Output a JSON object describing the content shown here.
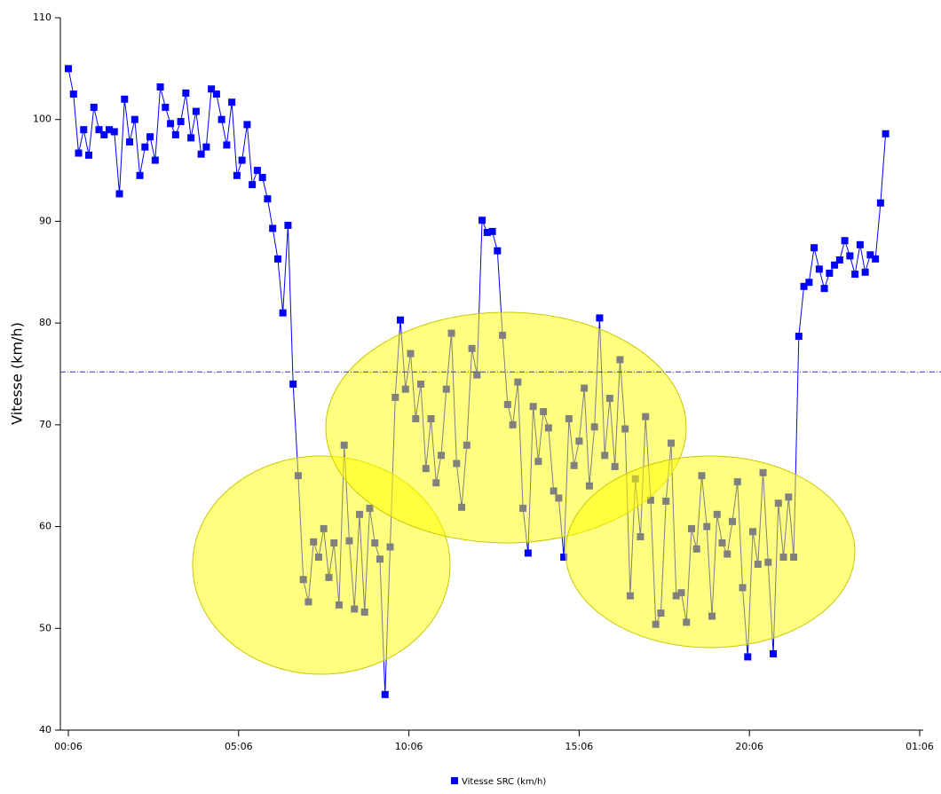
{
  "chart_data": {
    "type": "line",
    "y_label": "Vitesse (km/h)",
    "x": [
      0,
      0.15,
      0.3,
      0.45,
      0.6,
      0.75,
      0.9,
      1.05,
      1.2,
      1.35,
      1.5,
      1.65,
      1.8,
      1.95,
      2.1,
      2.25,
      2.4,
      2.55,
      2.7,
      2.85,
      3,
      3.15,
      3.3,
      3.45,
      3.6,
      3.75,
      3.9,
      4.05,
      4.2,
      4.35,
      4.5,
      4.65,
      4.8,
      4.95,
      5.1,
      5.25,
      5.4,
      5.55,
      5.7,
      5.85,
      6,
      6.15,
      6.3,
      6.45,
      6.6,
      6.75,
      6.9,
      7.05,
      7.2,
      7.35,
      7.5,
      7.65,
      7.8,
      7.95,
      8.1,
      8.25,
      8.4,
      8.55,
      8.7,
      8.85,
      9,
      9.15,
      9.3,
      9.45,
      9.6,
      9.75,
      9.9,
      10.05,
      10.2,
      10.35,
      10.5,
      10.65,
      10.8,
      10.95,
      11.1,
      11.25,
      11.4,
      11.55,
      11.7,
      11.85,
      12,
      12.15,
      12.3,
      12.45,
      12.6,
      12.75,
      12.9,
      13.05,
      13.2,
      13.35,
      13.5,
      13.65,
      13.8,
      13.95,
      14.1,
      14.25,
      14.4,
      14.55,
      14.7,
      14.85,
      15,
      15.15,
      15.3,
      15.45,
      15.6,
      15.75,
      15.9,
      16.05,
      16.2,
      16.35,
      16.5,
      16.65,
      16.8,
      16.95,
      17.1,
      17.25,
      17.4,
      17.55,
      17.7,
      17.85,
      18,
      18.15,
      18.3,
      18.45,
      18.6,
      18.75,
      18.9,
      19.05,
      19.2,
      19.35,
      19.5,
      19.65,
      19.8,
      19.95,
      20.1,
      20.25,
      20.4,
      20.55,
      20.7,
      20.85,
      21,
      21.15,
      21.3,
      21.45,
      21.6,
      21.75,
      21.9,
      22.05,
      22.2,
      22.35,
      22.5,
      22.65,
      22.8,
      22.95,
      23.1,
      23.25,
      23.4,
      23.55,
      23.7,
      23.85,
      24
    ],
    "series": [
      {
        "name": "Vitesse SRC (km/h)",
        "color": "#0000ff",
        "values": [
          105,
          102.5,
          96.7,
          99,
          96.5,
          101.2,
          99,
          98.5,
          99,
          98.8,
          92.7,
          102,
          97.8,
          100,
          94.5,
          97.3,
          98.3,
          96,
          103.2,
          101.2,
          99.6,
          98.5,
          99.8,
          102.6,
          98.2,
          100.8,
          96.6,
          97.3,
          103,
          102.5,
          100,
          97.5,
          101.7,
          94.5,
          96,
          99.5,
          93.6,
          95,
          94.3,
          92.2,
          89.3,
          86.3,
          81,
          89.6,
          74,
          65,
          54.8,
          52.6,
          58.5,
          57,
          59.8,
          55,
          58.4,
          52.3,
          68,
          58.6,
          51.9,
          61.2,
          51.6,
          61.8,
          58.4,
          56.8,
          43.5,
          58,
          72.7,
          80.3,
          73.5,
          77,
          70.6,
          74,
          65.7,
          70.6,
          64.3,
          67,
          73.5,
          79,
          66.2,
          61.9,
          68,
          77.5,
          74.9,
          90.1,
          88.9,
          89,
          87.1,
          78.8,
          72,
          70,
          74.2,
          61.8,
          57.4,
          71.8,
          66.4,
          71.3,
          69.7,
          63.5,
          62.8,
          57,
          70.6,
          66,
          68.4,
          73.6,
          64,
          69.8,
          80.5,
          67,
          72.6,
          65.9,
          76.4,
          69.6,
          53.2,
          64.7,
          59,
          70.8,
          62.6,
          50.4,
          51.5,
          62.5,
          68.2,
          53.2,
          53.5,
          50.6,
          59.8,
          57.8,
          65,
          60,
          51.2,
          61.2,
          58.4,
          57.3,
          60.5,
          64.4,
          54,
          47.2,
          59.5,
          56.3,
          65.3,
          56.5,
          47.5,
          62.3,
          57,
          62.9,
          57,
          78.7,
          83.6,
          84,
          87.4,
          85.3,
          83.4,
          84.9,
          85.7,
          86.2,
          88.1,
          86.6,
          84.8,
          87.7,
          85,
          86.7,
          86.3,
          91.8,
          98.6
        ]
      }
    ],
    "mean_line": 75.2,
    "xlim": [
      0,
      25
    ],
    "xticks": [
      {
        "value": 0,
        "label": "00:06"
      },
      {
        "value": 5,
        "label": "05:06"
      },
      {
        "value": 10,
        "label": "10:06"
      },
      {
        "value": 15,
        "label": "15:06"
      },
      {
        "value": 20,
        "label": "20:06"
      },
      {
        "value": 25,
        "label": "01:06"
      }
    ],
    "ylim": [
      40,
      110
    ],
    "yticks": [
      40,
      50,
      60,
      70,
      80,
      90,
      100,
      110
    ]
  }
}
